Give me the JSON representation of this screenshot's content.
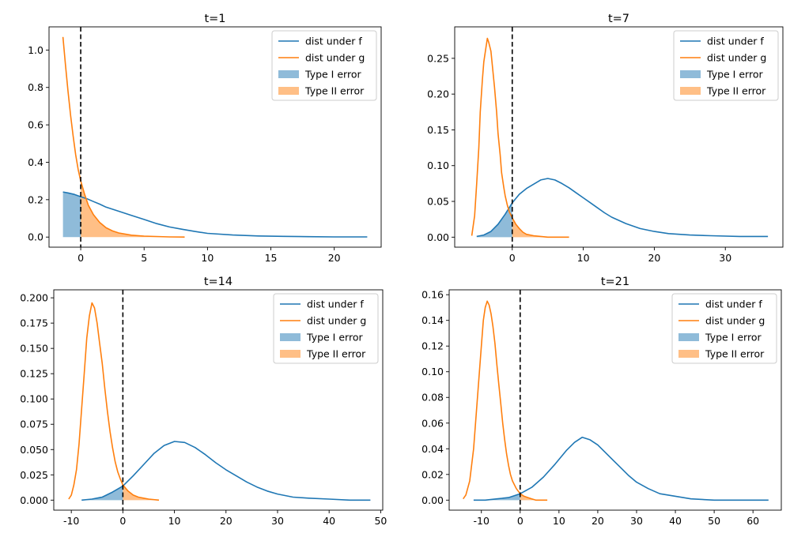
{
  "chart_data": [
    {
      "type": "line",
      "title": "t=1",
      "xlim": [
        -2.5,
        23.7
      ],
      "ylim": [
        -0.054,
        1.124
      ],
      "xticks": [
        0,
        5,
        10,
        15,
        20
      ],
      "yticks": [
        0.0,
        0.2,
        0.4,
        0.6,
        0.8,
        1.0
      ],
      "ytick_decimals": 1,
      "threshold": 0,
      "legend_position": "upper right",
      "legend": [
        "dist under f",
        "dist under g",
        "Type I error",
        "Type II error"
      ],
      "series": [
        {
          "name": "dist under f",
          "color": "#1f77b4",
          "points": [
            [
              -1.4,
              0.241
            ],
            [
              -1,
              0.236
            ],
            [
              -0.5,
              0.228
            ],
            [
              0,
              0.216
            ],
            [
              0.5,
              0.205
            ],
            [
              1,
              0.19
            ],
            [
              1.5,
              0.176
            ],
            [
              2,
              0.16
            ],
            [
              3,
              0.138
            ],
            [
              4,
              0.116
            ],
            [
              5,
              0.094
            ],
            [
              6,
              0.072
            ],
            [
              7,
              0.054
            ],
            [
              8,
              0.042
            ],
            [
              9,
              0.03
            ],
            [
              10,
              0.02
            ],
            [
              12,
              0.011
            ],
            [
              14,
              0.006
            ],
            [
              16,
              0.004
            ],
            [
              18,
              0.002
            ],
            [
              20,
              0.001
            ],
            [
              22.6,
              0.001
            ]
          ]
        },
        {
          "name": "dist under g",
          "color": "#ff7f0e",
          "points": [
            [
              -1.4,
              1.07
            ],
            [
              -1.2,
              0.92
            ],
            [
              -1,
              0.78
            ],
            [
              -0.8,
              0.65
            ],
            [
              -0.6,
              0.54
            ],
            [
              -0.4,
              0.44
            ],
            [
              -0.2,
              0.36
            ],
            [
              0,
              0.3
            ],
            [
              0.3,
              0.23
            ],
            [
              0.6,
              0.17
            ],
            [
              1,
              0.12
            ],
            [
              1.5,
              0.078
            ],
            [
              2,
              0.05
            ],
            [
              2.5,
              0.033
            ],
            [
              3,
              0.022
            ],
            [
              4,
              0.01
            ],
            [
              5,
              0.005
            ],
            [
              6,
              0.003
            ],
            [
              7,
              0.001
            ],
            [
              8.2,
              0.0
            ]
          ]
        }
      ]
    },
    {
      "type": "line",
      "title": "t=7",
      "xlim": [
        -8.1,
        38.1
      ],
      "ylim": [
        -0.014,
        0.294
      ],
      "xticks": [
        0,
        10,
        20,
        30
      ],
      "yticks": [
        0.0,
        0.05,
        0.1,
        0.15,
        0.2,
        0.25
      ],
      "ytick_decimals": 2,
      "threshold": 0,
      "legend_position": "upper right",
      "legend": [
        "dist under f",
        "dist under g",
        "Type I error",
        "Type II error"
      ],
      "series": [
        {
          "name": "dist under f",
          "color": "#1f77b4",
          "points": [
            [
              -5,
              0.001
            ],
            [
              -4,
              0.003
            ],
            [
              -3,
              0.008
            ],
            [
              -2,
              0.018
            ],
            [
              -1,
              0.032
            ],
            [
              0,
              0.048
            ],
            [
              1,
              0.06
            ],
            [
              2,
              0.068
            ],
            [
              3,
              0.074
            ],
            [
              4,
              0.08
            ],
            [
              5,
              0.082
            ],
            [
              6,
              0.08
            ],
            [
              7,
              0.075
            ],
            [
              8,
              0.069
            ],
            [
              9,
              0.062
            ],
            [
              10,
              0.055
            ],
            [
              11,
              0.048
            ],
            [
              12,
              0.041
            ],
            [
              13,
              0.034
            ],
            [
              14,
              0.028
            ],
            [
              16,
              0.019
            ],
            [
              18,
              0.012
            ],
            [
              20,
              0.008
            ],
            [
              22,
              0.005
            ],
            [
              25,
              0.003
            ],
            [
              28,
              0.002
            ],
            [
              32,
              0.001
            ],
            [
              36,
              0.001
            ]
          ]
        },
        {
          "name": "dist under g",
          "color": "#ff7f0e",
          "points": [
            [
              -5.7,
              0.002
            ],
            [
              -5.3,
              0.03
            ],
            [
              -5,
              0.075
            ],
            [
              -4.7,
              0.125
            ],
            [
              -4.5,
              0.175
            ],
            [
              -4.2,
              0.22
            ],
            [
              -4,
              0.245
            ],
            [
              -3.7,
              0.265
            ],
            [
              -3.5,
              0.278
            ],
            [
              -3.3,
              0.272
            ],
            [
              -3,
              0.26
            ],
            [
              -2.8,
              0.24
            ],
            [
              -2.5,
              0.21
            ],
            [
              -2.2,
              0.175
            ],
            [
              -2,
              0.145
            ],
            [
              -1.7,
              0.115
            ],
            [
              -1.5,
              0.09
            ],
            [
              -1.2,
              0.07
            ],
            [
              -1,
              0.058
            ],
            [
              -0.7,
              0.045
            ],
            [
              -0.4,
              0.035
            ],
            [
              0,
              0.027
            ],
            [
              0.5,
              0.018
            ],
            [
              1,
              0.012
            ],
            [
              1.5,
              0.007
            ],
            [
              2,
              0.004
            ],
            [
              3,
              0.002
            ],
            [
              4,
              0.001
            ],
            [
              5,
              0.0
            ],
            [
              8,
              0.0
            ]
          ]
        }
      ]
    },
    {
      "type": "line",
      "title": "t=14",
      "xlim": [
        -13.4,
        50.4
      ],
      "ylim": [
        -0.0099,
        0.2079
      ],
      "xticks": [
        -10,
        0,
        10,
        20,
        30,
        40,
        50
      ],
      "yticks": [
        0.0,
        0.025,
        0.05,
        0.075,
        0.1,
        0.125,
        0.15,
        0.175,
        0.2
      ],
      "ytick_decimals": 3,
      "threshold": 0,
      "legend_position": "upper right",
      "legend": [
        "dist under f",
        "dist under g",
        "Type I error",
        "Type II error"
      ],
      "series": [
        {
          "name": "dist under f",
          "color": "#1f77b4",
          "points": [
            [
              -8,
              0.0
            ],
            [
              -6,
              0.001
            ],
            [
              -4,
              0.003
            ],
            [
              -2,
              0.008
            ],
            [
              0,
              0.014
            ],
            [
              2,
              0.024
            ],
            [
              4,
              0.035
            ],
            [
              6,
              0.046
            ],
            [
              8,
              0.054
            ],
            [
              10,
              0.058
            ],
            [
              12,
              0.057
            ],
            [
              14,
              0.052
            ],
            [
              16,
              0.045
            ],
            [
              18,
              0.037
            ],
            [
              20,
              0.03
            ],
            [
              22,
              0.024
            ],
            [
              24,
              0.018
            ],
            [
              26,
              0.013
            ],
            [
              28,
              0.009
            ],
            [
              30,
              0.006
            ],
            [
              33,
              0.003
            ],
            [
              36,
              0.002
            ],
            [
              40,
              0.001
            ],
            [
              44,
              0.0
            ],
            [
              48,
              0.0
            ]
          ]
        },
        {
          "name": "dist under g",
          "color": "#ff7f0e",
          "points": [
            [
              -10.5,
              0.001
            ],
            [
              -10,
              0.005
            ],
            [
              -9.5,
              0.015
            ],
            [
              -9,
              0.03
            ],
            [
              -8.5,
              0.055
            ],
            [
              -8,
              0.09
            ],
            [
              -7.5,
              0.125
            ],
            [
              -7,
              0.16
            ],
            [
              -6.5,
              0.182
            ],
            [
              -6,
              0.195
            ],
            [
              -5.5,
              0.19
            ],
            [
              -5,
              0.175
            ],
            [
              -4.5,
              0.155
            ],
            [
              -4,
              0.135
            ],
            [
              -3.5,
              0.11
            ],
            [
              -3,
              0.088
            ],
            [
              -2.5,
              0.068
            ],
            [
              -2,
              0.052
            ],
            [
              -1.5,
              0.038
            ],
            [
              -1,
              0.028
            ],
            [
              -0.5,
              0.021
            ],
            [
              0,
              0.015
            ],
            [
              1,
              0.009
            ],
            [
              2,
              0.005
            ],
            [
              3,
              0.003
            ],
            [
              4,
              0.002
            ],
            [
              5,
              0.001
            ],
            [
              7,
              0.0
            ]
          ]
        }
      ]
    },
    {
      "type": "line",
      "title": "t=21",
      "xlim": [
        -18.3,
        67.3
      ],
      "ylim": [
        -0.0078,
        0.1638
      ],
      "xticks": [
        -10,
        0,
        10,
        20,
        30,
        40,
        50,
        60
      ],
      "yticks": [
        0.0,
        0.02,
        0.04,
        0.06,
        0.08,
        0.1,
        0.12,
        0.14,
        0.16
      ],
      "ytick_decimals": 2,
      "threshold": 0,
      "legend_position": "upper right",
      "legend": [
        "dist under f",
        "dist under g",
        "Type I error",
        "Type II error"
      ],
      "series": [
        {
          "name": "dist under f",
          "color": "#1f77b4",
          "points": [
            [
              -12,
              0.0
            ],
            [
              -9,
              0.0
            ],
            [
              -6,
              0.001
            ],
            [
              -3,
              0.002
            ],
            [
              0,
              0.005
            ],
            [
              3,
              0.01
            ],
            [
              6,
              0.018
            ],
            [
              9,
              0.028
            ],
            [
              12,
              0.039
            ],
            [
              14,
              0.045
            ],
            [
              16,
              0.049
            ],
            [
              18,
              0.047
            ],
            [
              20,
              0.043
            ],
            [
              22,
              0.037
            ],
            [
              24,
              0.031
            ],
            [
              26,
              0.025
            ],
            [
              28,
              0.019
            ],
            [
              30,
              0.014
            ],
            [
              33,
              0.009
            ],
            [
              36,
              0.005
            ],
            [
              40,
              0.003
            ],
            [
              44,
              0.001
            ],
            [
              50,
              0.0
            ],
            [
              56,
              0.0
            ],
            [
              64,
              0.0
            ]
          ]
        },
        {
          "name": "dist under g",
          "color": "#ff7f0e",
          "points": [
            [
              -14.7,
              0.001
            ],
            [
              -14,
              0.004
            ],
            [
              -13,
              0.015
            ],
            [
              -12,
              0.04
            ],
            [
              -11,
              0.08
            ],
            [
              -10,
              0.12
            ],
            [
              -9.5,
              0.14
            ],
            [
              -9,
              0.15
            ],
            [
              -8.5,
              0.155
            ],
            [
              -8,
              0.152
            ],
            [
              -7.5,
              0.145
            ],
            [
              -7,
              0.135
            ],
            [
              -6.5,
              0.122
            ],
            [
              -6,
              0.105
            ],
            [
              -5.5,
              0.09
            ],
            [
              -5,
              0.075
            ],
            [
              -4.5,
              0.06
            ],
            [
              -4,
              0.047
            ],
            [
              -3.5,
              0.036
            ],
            [
              -3,
              0.027
            ],
            [
              -2.5,
              0.02
            ],
            [
              -2,
              0.015
            ],
            [
              -1,
              0.009
            ],
            [
              0,
              0.005
            ],
            [
              1,
              0.003
            ],
            [
              2,
              0.002
            ],
            [
              3,
              0.001
            ],
            [
              4,
              0.0
            ],
            [
              7,
              0.0
            ]
          ]
        }
      ]
    }
  ]
}
